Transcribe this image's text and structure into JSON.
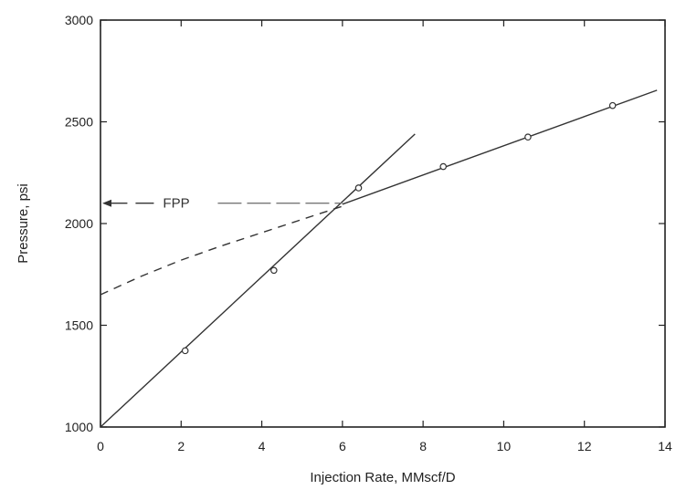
{
  "chart_data": {
    "type": "line",
    "title": "",
    "xlabel": "Injection Rate, MMscf/D",
    "ylabel": "Pressure, psi",
    "xlim": [
      0,
      14
    ],
    "ylim": [
      1000,
      3000
    ],
    "xticks": [
      0,
      2,
      4,
      6,
      8,
      10,
      12,
      14
    ],
    "yticks": [
      1000,
      1500,
      2000,
      2500,
      3000
    ],
    "grid": false,
    "series": [
      {
        "style": "solid",
        "marker": "none",
        "points": [
          [
            0,
            1000
          ],
          [
            7.8,
            2440
          ]
        ]
      },
      {
        "style": "solid",
        "marker": "none",
        "points": [
          [
            6.0,
            2095
          ],
          [
            13.8,
            2655
          ]
        ]
      },
      {
        "style": "dashed",
        "marker": "none",
        "points": [
          [
            0,
            1650
          ],
          [
            1,
            1740
          ],
          [
            2,
            1820
          ],
          [
            3,
            1890
          ],
          [
            4,
            1955
          ],
          [
            5,
            2020
          ],
          [
            6,
            2085
          ]
        ]
      },
      {
        "style": "none",
        "marker": "circle",
        "points": [
          [
            2.1,
            1375
          ],
          [
            4.3,
            1770
          ],
          [
            6.4,
            2175
          ],
          [
            8.5,
            2280
          ],
          [
            10.6,
            2425
          ],
          [
            12.7,
            2580
          ]
        ]
      }
    ],
    "annotations": [
      {
        "text": "FPP",
        "arrow_from": [
          6.0,
          2100
        ],
        "arrow_to": [
          0,
          2100
        ]
      }
    ]
  }
}
